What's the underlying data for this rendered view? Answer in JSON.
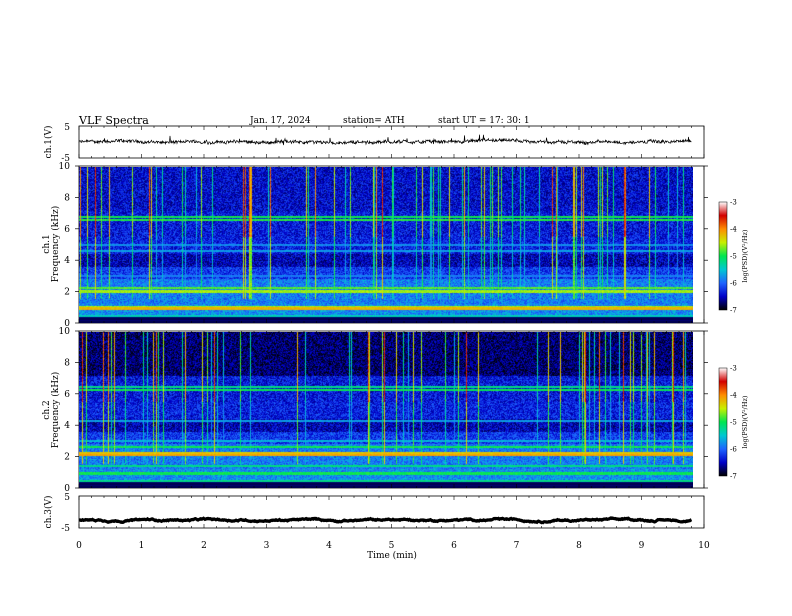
{
  "header": {
    "title": "VLF  Spectra",
    "date": "Jan.  17,  2024",
    "station": "station= ATH",
    "start": "start  UT  =    17: 30: 1"
  },
  "chart_data": [
    {
      "type": "line",
      "name": "ch1-waveform",
      "ylabel": "ch.1(V)",
      "ylim": [
        -5,
        5
      ],
      "yticks": [
        "5",
        "-5"
      ],
      "xlim": [
        0,
        10
      ],
      "baseline_v": 0,
      "data_end_min": 9.8
    },
    {
      "type": "heatmap",
      "name": "ch1-spectrogram",
      "ylabel": "ch.1\nFrequency  (kHz)",
      "ylim": [
        0,
        10
      ],
      "yticks": [
        "0",
        "2",
        "4",
        "6",
        "8",
        "10"
      ],
      "xlim": [
        0,
        10
      ],
      "data_end_min": 9.8,
      "colorbar": {
        "label": "log(PSD)(V²/Hz)",
        "range": [
          -7,
          -3
        ],
        "ticks": [
          "-3",
          "-4",
          "-5",
          "-6",
          "-7"
        ]
      }
    },
    {
      "type": "heatmap",
      "name": "ch2-spectrogram",
      "ylabel": "ch.2\nFrequency  (kHz)",
      "ylim": [
        0,
        10
      ],
      "yticks": [
        "0",
        "2",
        "4",
        "6",
        "8",
        "10"
      ],
      "xlim": [
        0,
        10
      ],
      "data_end_min": 9.8,
      "colorbar": {
        "label": "log(PSD)(V²/Hz)",
        "range": [
          -7,
          -3
        ],
        "ticks": [
          "-3",
          "-4",
          "-5",
          "-6",
          "-7"
        ]
      }
    },
    {
      "type": "line",
      "name": "ch3-waveform",
      "ylabel": "ch.3(V)",
      "ylim": [
        -5,
        5
      ],
      "yticks": [
        "5",
        "-5"
      ],
      "xlim": [
        0,
        10
      ],
      "baseline_v": -2.5,
      "data_end_min": 9.8
    }
  ],
  "xaxis": {
    "label": "Time  (min)",
    "ticks": [
      "0",
      "1",
      "2",
      "3",
      "4",
      "5",
      "6",
      "7",
      "8",
      "9",
      "10"
    ]
  },
  "colors": {
    "colormap": [
      "#000000",
      "#0000c8",
      "#1e64ff",
      "#00c8d2",
      "#00e650",
      "#c8f000",
      "#ff8c00",
      "#d20000",
      "#ffffff"
    ]
  }
}
